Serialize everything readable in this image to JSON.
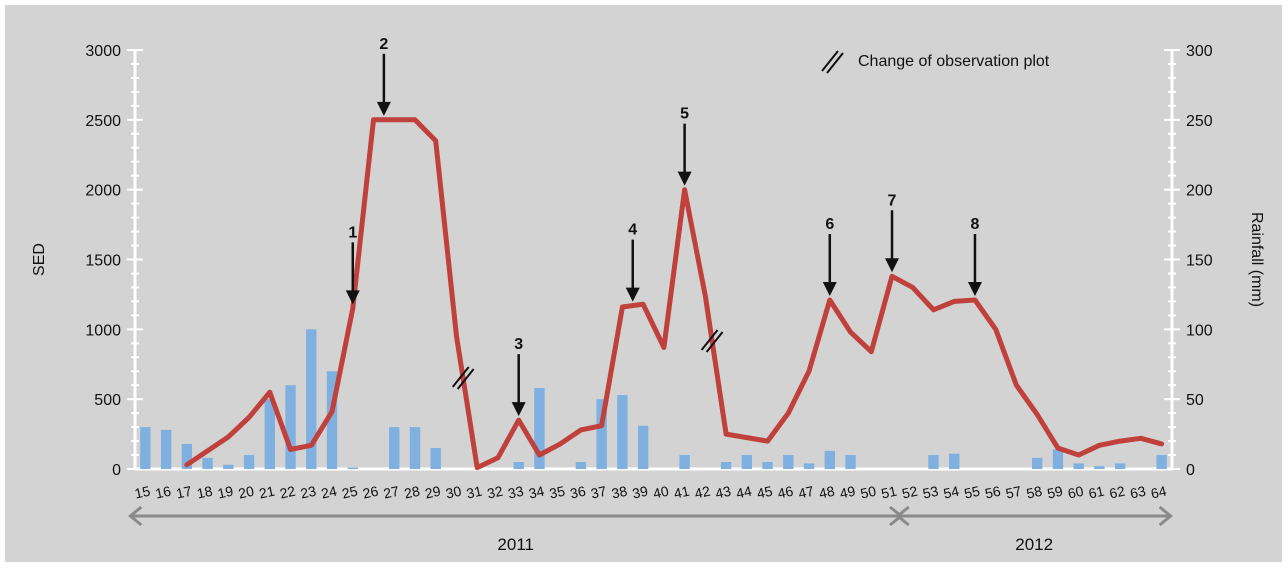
{
  "chart_data": {
    "type": "bar+line",
    "colors": {
      "background": "#d3d3d3",
      "bars": "#7fb0e0",
      "line": "#c0403c",
      "axis": "#ffffff",
      "arrows": "#111111",
      "text": "#111111"
    },
    "xlabel": "",
    "ylabel_left": "SED",
    "ylabel_right": "Rainfall (mm)",
    "ylim_left": [
      0,
      3000
    ],
    "ylim_right": [
      0,
      300
    ],
    "yticks_left": [
      0,
      500,
      1000,
      1500,
      2000,
      2500,
      3000
    ],
    "yticks_right": [
      0,
      50,
      100,
      150,
      200,
      250,
      300
    ],
    "grid": false,
    "categories": [
      "15",
      "16",
      "17",
      "18",
      "19",
      "20",
      "21",
      "22",
      "23",
      "24",
      "25",
      "26",
      "27",
      "28",
      "29",
      "30",
      "31",
      "32",
      "33",
      "34",
      "35",
      "36",
      "37",
      "38",
      "39",
      "40",
      "41",
      "42",
      "43",
      "44",
      "45",
      "46",
      "47",
      "48",
      "49",
      "50",
      "51",
      "52",
      "53",
      "54",
      "55",
      "56",
      "57",
      "58",
      "59",
      "60",
      "61",
      "62",
      "63",
      "64"
    ],
    "series": [
      {
        "kind": "bar",
        "axis": "right",
        "values": [
          30,
          28,
          18,
          8,
          3,
          10,
          50,
          60,
          100,
          70,
          1,
          0,
          30,
          30,
          15,
          0,
          0,
          0,
          5,
          58,
          0,
          5,
          50,
          53,
          31,
          0,
          10,
          0,
          5,
          10,
          5,
          10,
          4,
          13,
          10,
          0,
          0,
          0,
          10,
          11,
          0,
          0,
          0,
          8,
          14,
          4,
          2,
          4,
          0,
          10
        ]
      },
      {
        "kind": "line",
        "axis": "left",
        "values": [
          null,
          null,
          30,
          130,
          230,
          370,
          550,
          140,
          170,
          410,
          1150,
          2500,
          2500,
          2500,
          2350,
          950,
          10,
          80,
          350,
          100,
          180,
          280,
          310,
          1160,
          1180,
          870,
          2000,
          1240,
          250,
          225,
          200,
          400,
          700,
          1210,
          980,
          840,
          1380,
          1300,
          1140,
          1200,
          1210,
          1000,
          600,
          390,
          150,
          100,
          170,
          200,
          220,
          180
        ]
      }
    ],
    "annotations": [
      {
        "label": "1",
        "x": "25"
      },
      {
        "label": "2",
        "x": "26.5"
      },
      {
        "label": "3",
        "x": "33"
      },
      {
        "label": "4",
        "x": "38.5"
      },
      {
        "label": "5",
        "x": "41"
      },
      {
        "label": "6",
        "x": "48"
      },
      {
        "label": "7",
        "x": "51"
      },
      {
        "label": "8",
        "x": "55"
      }
    ],
    "plot_change_label": "Change of observation plot",
    "plot_change_between": [
      [
        "30",
        "31"
      ],
      [
        "42",
        "43"
      ]
    ],
    "years": [
      {
        "label": "2011",
        "from": "15",
        "to": "51"
      },
      {
        "label": "2012",
        "from": "52",
        "to": "64"
      }
    ]
  }
}
